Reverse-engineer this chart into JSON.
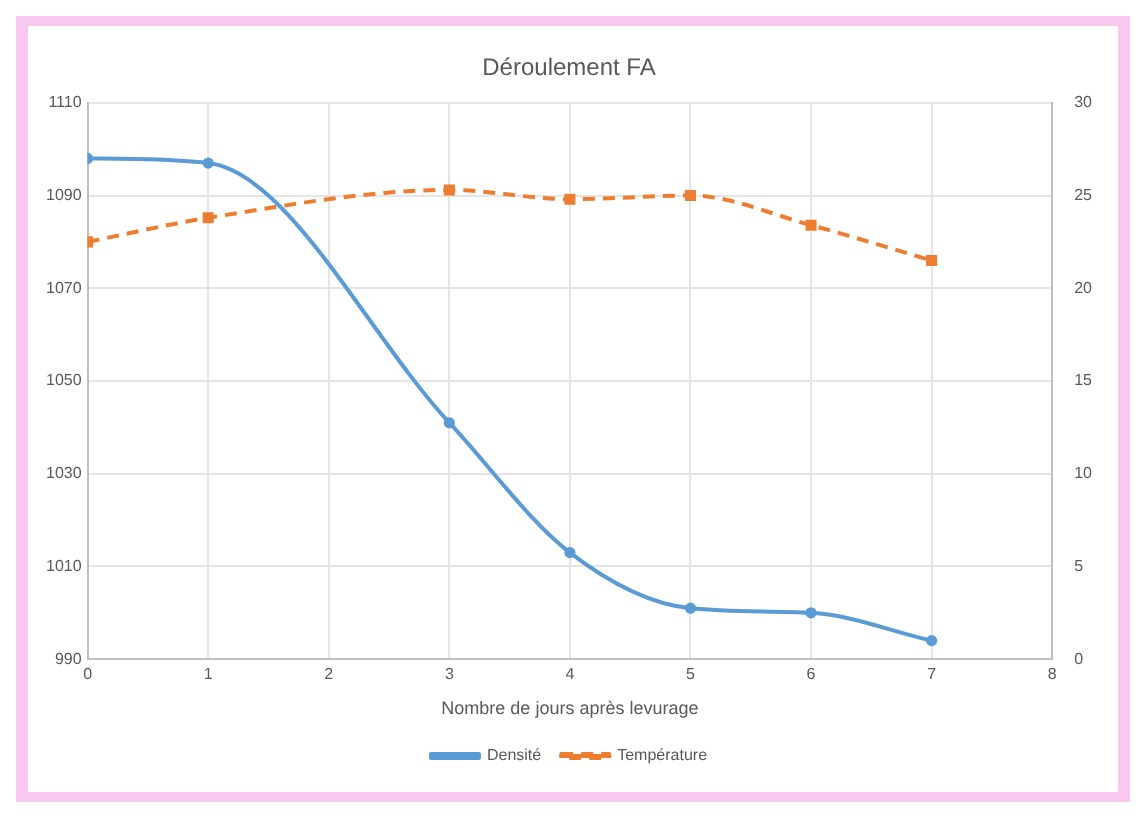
{
  "chart_data": {
    "type": "line",
    "title": "Déroulement FA",
    "xlabel": "Nombre de jours après levurage",
    "xlim": [
      0,
      8
    ],
    "xticks": [
      0,
      1,
      2,
      3,
      4,
      5,
      6,
      7,
      8
    ],
    "ylim": [
      990,
      1110
    ],
    "yticks": [
      990,
      1010,
      1030,
      1050,
      1070,
      1090,
      1110
    ],
    "y2lim": [
      0,
      30
    ],
    "y2ticks": [
      0,
      5,
      10,
      15,
      20,
      25,
      30
    ],
    "grid": true,
    "legend": "bottom",
    "series": [
      {
        "name": "Densité",
        "color": "#5b9bd5",
        "x": [
          0,
          1,
          3,
          4,
          5,
          6,
          7
        ],
        "values": [
          1098,
          1097,
          1041,
          1013,
          1001,
          1000,
          994
        ],
        "marker": "circle",
        "line_style": "solid"
      },
      {
        "name": "Température",
        "color": "#ed7d31",
        "axis": "y2",
        "x": [
          0,
          1,
          3,
          4,
          5,
          6,
          7
        ],
        "values": [
          22.5,
          23.8,
          25.3,
          24.8,
          25,
          23.4,
          21.5
        ],
        "marker": "square",
        "line_style": "dashed"
      }
    ]
  }
}
